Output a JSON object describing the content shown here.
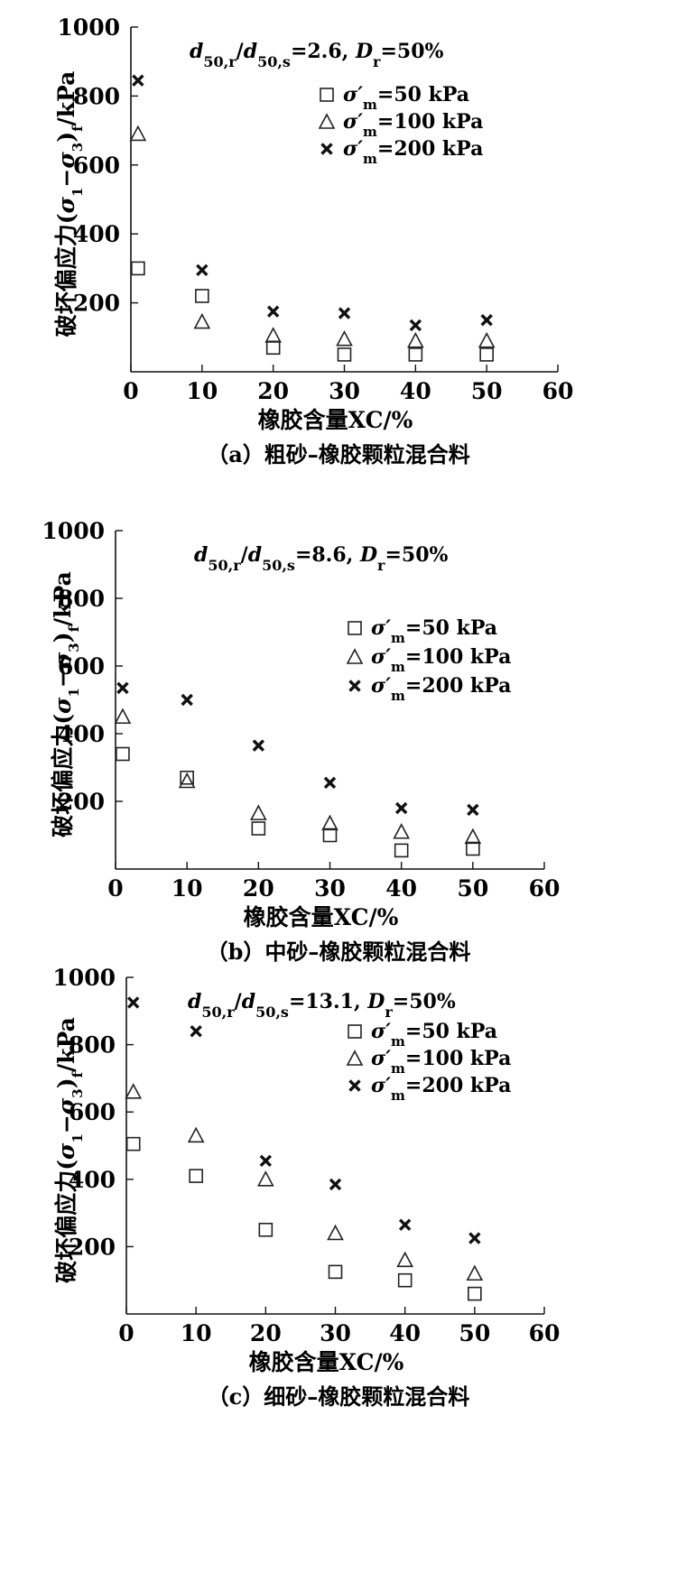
{
  "chart_data": [
    {
      "type": "scatter",
      "panel": "a",
      "annotation": "d50,r/d50,s=2.6, Dr=50%",
      "xlabel": "橡胶含量XC/%",
      "ylabel": "破坏偏应力(σ1−σ3)f/kPa",
      "caption": "（a）粗砂–橡胶颗粒混合料",
      "xlim": [
        0,
        60
      ],
      "ylim": [
        0,
        1000
      ],
      "xticks": [
        0,
        10,
        20,
        30,
        40,
        50,
        60
      ],
      "yticks": [
        200,
        400,
        600,
        800,
        1000
      ],
      "legend_position": "upper-right",
      "series": [
        {
          "name": "σ′m=50 kPa",
          "marker": "square",
          "x": [
            1,
            10,
            20,
            30,
            40,
            50
          ],
          "y": [
            300,
            220,
            70,
            50,
            50,
            50
          ]
        },
        {
          "name": "σ′m=100 kPa",
          "marker": "triangle",
          "x": [
            1,
            10,
            20,
            30,
            40,
            50
          ],
          "y": [
            690,
            145,
            105,
            95,
            90,
            90
          ]
        },
        {
          "name": "σ′m=200 kPa",
          "marker": "cross",
          "x": [
            1,
            10,
            20,
            30,
            40,
            50
          ],
          "y": [
            845,
            295,
            175,
            170,
            135,
            150
          ]
        }
      ]
    },
    {
      "type": "scatter",
      "panel": "b",
      "annotation": "d50,r/d50,s=8.6, Dr=50%",
      "xlabel": "橡胶含量XC/%",
      "ylabel": "破坏偏应力(σ1−σ3)f/kPa",
      "caption": "（b）中砂–橡胶颗粒混合料",
      "xlim": [
        0,
        60
      ],
      "ylim": [
        0,
        1000
      ],
      "xticks": [
        0,
        10,
        20,
        30,
        40,
        50,
        60
      ],
      "yticks": [
        200,
        400,
        600,
        800,
        1000
      ],
      "legend_position": "right",
      "series": [
        {
          "name": "σ′m=50 kPa",
          "marker": "square",
          "x": [
            1,
            10,
            20,
            30,
            40,
            50
          ],
          "y": [
            340,
            270,
            120,
            100,
            55,
            60
          ]
        },
        {
          "name": "σ′m=100 kPa",
          "marker": "triangle",
          "x": [
            1,
            10,
            20,
            30,
            40,
            50
          ],
          "y": [
            450,
            260,
            165,
            135,
            110,
            95
          ]
        },
        {
          "name": "σ′m=200 kPa",
          "marker": "cross",
          "x": [
            1,
            10,
            20,
            30,
            40,
            50
          ],
          "y": [
            535,
            500,
            365,
            255,
            180,
            175
          ]
        }
      ]
    },
    {
      "type": "scatter",
      "panel": "c",
      "annotation": "d50,r/d50,s=13.1, Dr=50%",
      "xlabel": "橡胶含量XC/%",
      "ylabel": "破坏偏应力(σ1−σ3)f/kPa",
      "caption": "（c）细砂–橡胶颗粒混合料",
      "xlim": [
        0,
        60
      ],
      "ylim": [
        0,
        1000
      ],
      "xticks": [
        0,
        10,
        20,
        30,
        40,
        50,
        60
      ],
      "yticks": [
        200,
        400,
        600,
        800,
        1000
      ],
      "legend_position": "upper-right",
      "series": [
        {
          "name": "σ′m=50 kPa",
          "marker": "square",
          "x": [
            1,
            10,
            20,
            30,
            40,
            50
          ],
          "y": [
            505,
            410,
            250,
            125,
            100,
            60
          ]
        },
        {
          "name": "σ′m=100 kPa",
          "marker": "triangle",
          "x": [
            1,
            10,
            20,
            30,
            40,
            50
          ],
          "y": [
            660,
            530,
            400,
            240,
            160,
            120
          ]
        },
        {
          "name": "σ′m=200 kPa",
          "marker": "cross",
          "x": [
            1,
            10,
            20,
            30,
            40,
            50
          ],
          "y": [
            925,
            840,
            455,
            385,
            265,
            225
          ]
        }
      ]
    }
  ]
}
